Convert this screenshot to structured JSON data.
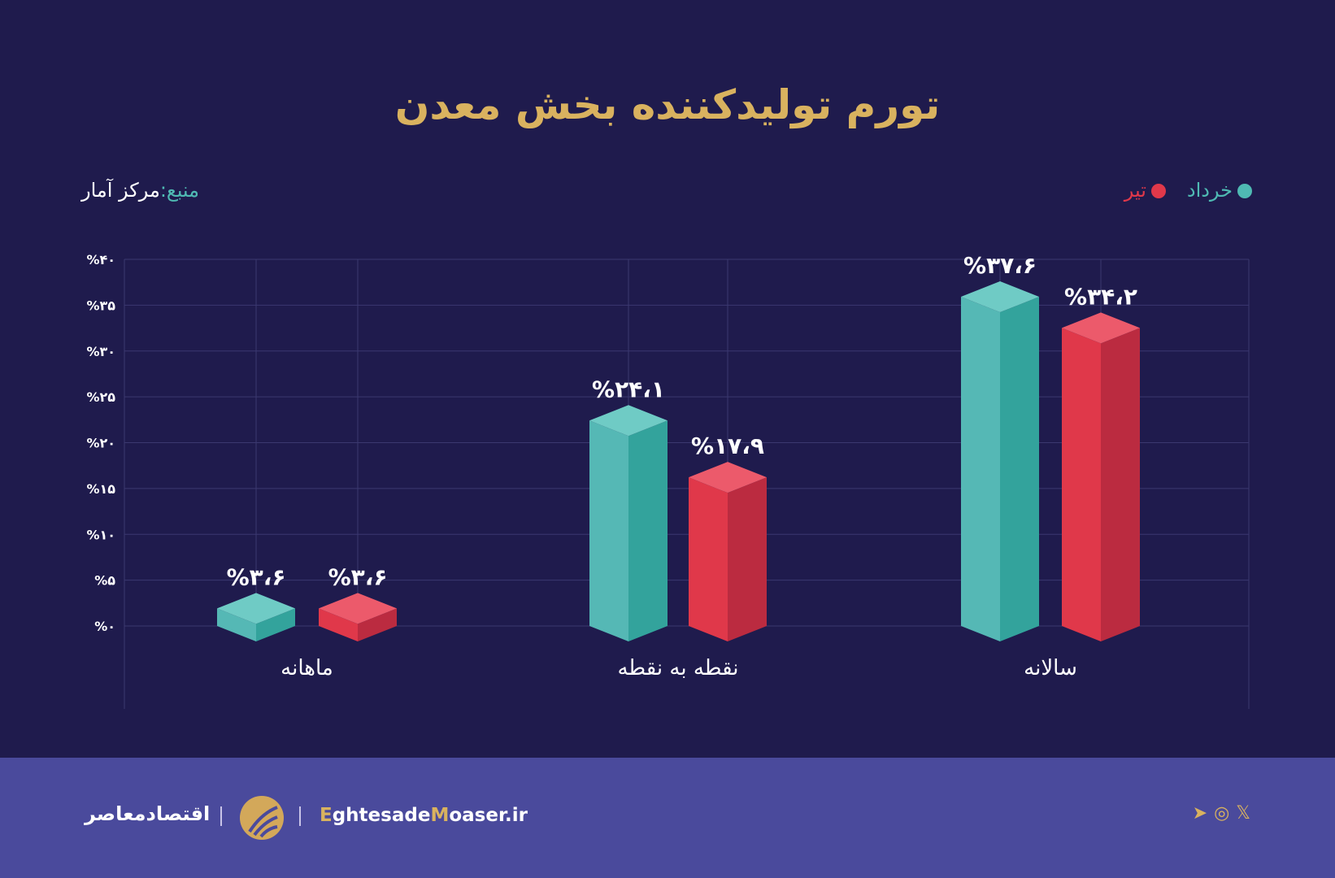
{
  "title": "تورم تولیدکننده بخش معدن",
  "source": {
    "label": "منبع:",
    "value": "مرکز آمار"
  },
  "footer": {
    "brand_fa": "اقتصادمعاصر",
    "site_e": "E",
    "site_1": "ghtesade",
    "site_m": "M",
    "site_2": "oaser.ir",
    "social": [
      "x-icon",
      "instagram-icon",
      "telegram-icon"
    ]
  },
  "colors": {
    "background": "#1f1b4d",
    "footer": "#4a4a9c",
    "title": "#d9b25f",
    "khordad": "#55b8b5",
    "tir": "#e0384a"
  },
  "chart_data": {
    "type": "bar",
    "title": "تورم تولیدکننده بخش معدن",
    "categories": [
      "ماهانه",
      "نقطه به نقطه",
      "سالانه"
    ],
    "series": [
      {
        "name": "خرداد",
        "values": [
          3.6,
          24.1,
          37.6
        ],
        "labels": [
          "%۳،۶",
          "%۲۴،۱",
          "%۳۷،۶"
        ],
        "color": "#55b8b5",
        "dark": "#33a39c",
        "top": "#6fcbc5"
      },
      {
        "name": "تیر",
        "values": [
          3.6,
          17.9,
          34.2
        ],
        "labels": [
          "%۳،۶",
          "%۱۷،۹",
          "%۳۴،۲"
        ],
        "color": "#e0384a",
        "dark": "#bb2b40",
        "top": "#ec5a6b"
      }
    ],
    "ylim": [
      0,
      40
    ],
    "yticks": [
      0,
      5,
      10,
      15,
      20,
      25,
      30,
      35,
      40
    ],
    "ytick_labels": [
      "%۰",
      "%۵",
      "%۱۰",
      "%۱۵",
      "%۲۰",
      "%۲۵",
      "%۳۰",
      "%۳۵",
      "%۴۰"
    ],
    "grid": true,
    "legend": "top-right"
  }
}
